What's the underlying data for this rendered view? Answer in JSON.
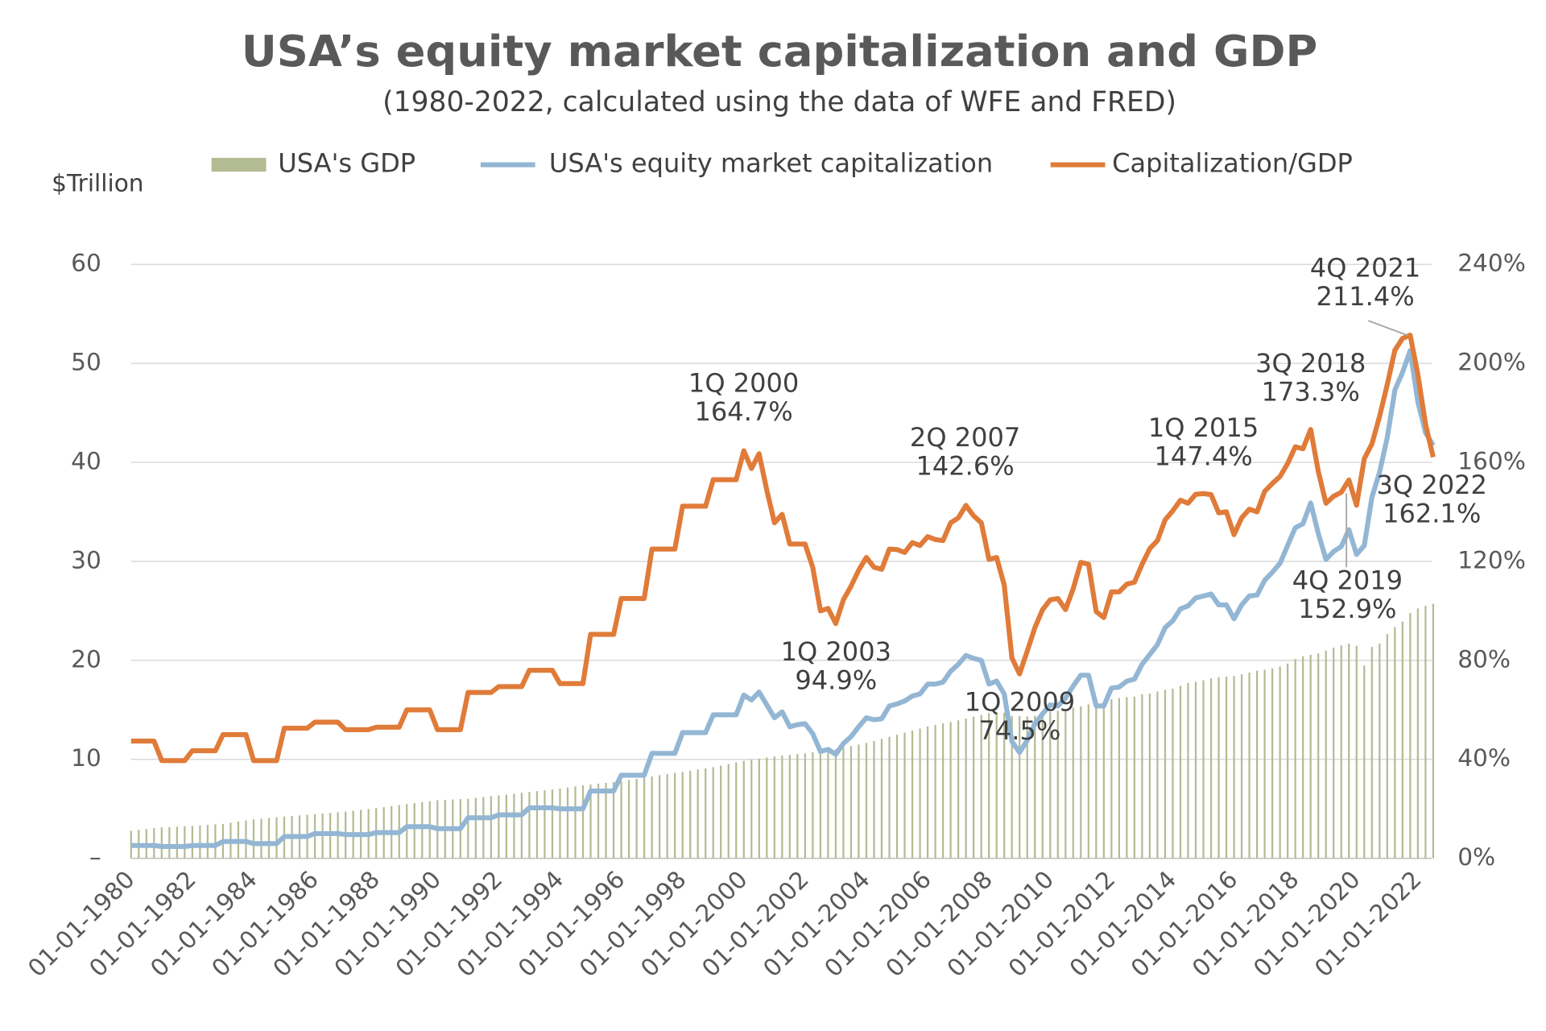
{
  "chart_data": {
    "type": "combo",
    "title": "USA’s equity market capitalization and GDP",
    "subtitle": "(1980-2022, calculated using the data of WFE and FRED)",
    "ylabel": "$Trillion",
    "legend": "top",
    "grid": true,
    "categories": [
      "01-01-1980",
      null,
      null,
      null,
      null,
      null,
      null,
      null,
      "01-01-1982",
      null,
      null,
      null,
      null,
      null,
      null,
      null,
      "01-01-1984",
      null,
      null,
      null,
      null,
      null,
      null,
      null,
      "01-01-1986",
      null,
      null,
      null,
      null,
      null,
      null,
      null,
      "01-01-1988",
      null,
      null,
      null,
      null,
      null,
      null,
      null,
      "01-01-1990",
      null,
      null,
      null,
      null,
      null,
      null,
      null,
      "01-01-1992",
      null,
      null,
      null,
      null,
      null,
      null,
      null,
      "01-01-1994",
      null,
      null,
      null,
      null,
      null,
      null,
      null,
      "01-01-1996",
      null,
      null,
      null,
      null,
      null,
      null,
      null,
      "01-01-1998",
      null,
      null,
      null,
      null,
      null,
      null,
      null,
      "01-01-2000",
      null,
      null,
      null,
      null,
      null,
      null,
      null,
      "01-01-2002",
      null,
      null,
      null,
      null,
      null,
      null,
      null,
      "01-01-2004",
      null,
      null,
      null,
      null,
      null,
      null,
      null,
      "01-01-2006",
      null,
      null,
      null,
      null,
      null,
      null,
      null,
      "01-01-2008",
      null,
      null,
      null,
      null,
      null,
      null,
      null,
      "01-01-2010",
      null,
      null,
      null,
      null,
      null,
      null,
      null,
      "01-01-2012",
      null,
      null,
      null,
      null,
      null,
      null,
      null,
      "01-01-2014",
      null,
      null,
      null,
      null,
      null,
      null,
      null,
      "01-01-2016",
      null,
      null,
      null,
      null,
      null,
      null,
      null,
      "01-01-2018",
      null,
      null,
      null,
      null,
      null,
      null,
      null,
      "01-01-2020",
      null,
      null,
      null,
      null,
      null,
      null,
      null,
      "01-01-2022",
      null,
      null
    ],
    "series": [
      {
        "name": "USA's GDP",
        "type": "bar",
        "axis": "y",
        "color": "#b3bb93",
        "values": [
          2.79,
          2.88,
          2.96,
          3.05,
          3.13,
          3.17,
          3.2,
          3.24,
          3.27,
          3.32,
          3.38,
          3.43,
          3.48,
          3.6,
          3.71,
          3.83,
          3.94,
          4.01,
          4.08,
          4.15,
          4.22,
          4.28,
          4.34,
          4.4,
          4.46,
          4.53,
          4.59,
          4.66,
          4.72,
          4.81,
          4.9,
          4.98,
          5.07,
          5.17,
          5.28,
          5.38,
          5.48,
          5.58,
          5.68,
          5.77,
          5.87,
          5.91,
          5.95,
          5.98,
          6.02,
          6.11,
          6.19,
          6.28,
          6.36,
          6.45,
          6.53,
          6.62,
          6.7,
          6.79,
          6.88,
          6.96,
          7.05,
          7.16,
          7.26,
          7.37,
          7.47,
          7.55,
          7.63,
          7.7,
          7.78,
          7.91,
          8.03,
          8.16,
          8.28,
          8.4,
          8.51,
          8.63,
          8.74,
          8.86,
          8.98,
          9.09,
          9.21,
          9.37,
          9.53,
          9.69,
          9.85,
          9.96,
          10.07,
          10.19,
          10.3,
          10.38,
          10.45,
          10.53,
          10.6,
          10.71,
          10.82,
          10.92,
          11.03,
          11.19,
          11.34,
          11.5,
          11.65,
          11.86,
          12.07,
          12.28,
          12.49,
          12.7,
          12.9,
          13.11,
          13.31,
          13.47,
          13.63,
          13.78,
          13.94,
          14.12,
          14.31,
          14.49,
          14.67,
          14.77,
          14.71,
          14.4,
          14.38,
          14.34,
          14.4,
          14.56,
          14.77,
          14.91,
          15.04,
          15.23,
          15.35,
          15.56,
          15.65,
          15.84,
          16.08,
          16.19,
          16.28,
          16.33,
          16.57,
          16.64,
          16.85,
          17.03,
          17.14,
          17.43,
          17.72,
          17.84,
          17.99,
          18.19,
          18.31,
          18.35,
          18.42,
          18.59,
          18.77,
          18.96,
          19.05,
          19.19,
          19.38,
          19.68,
          20.14,
          20.41,
          20.56,
          20.69,
          21.0,
          21.29,
          21.51,
          21.69,
          21.48,
          19.48,
          21.35,
          21.7,
          22.66,
          23.37,
          23.92,
          24.78,
          25.25,
          25.5,
          25.72
        ]
      },
      {
        "name": "USA's equity market capitalization",
        "type": "line",
        "axis": "y",
        "color": "#93b6d4",
        "values": [
          1.3,
          1.3,
          1.3,
          1.3,
          1.2,
          1.2,
          1.2,
          1.2,
          1.3,
          1.3,
          1.3,
          1.3,
          1.7,
          1.7,
          1.7,
          1.7,
          1.5,
          1.5,
          1.5,
          1.5,
          2.2,
          2.2,
          2.2,
          2.2,
          2.5,
          2.5,
          2.5,
          2.5,
          2.4,
          2.4,
          2.4,
          2.4,
          2.6,
          2.6,
          2.6,
          2.6,
          3.2,
          3.2,
          3.2,
          3.2,
          3.0,
          3.0,
          3.0,
          3.0,
          4.1,
          4.1,
          4.1,
          4.1,
          4.4,
          4.4,
          4.4,
          4.4,
          5.1,
          5.1,
          5.1,
          5.1,
          5.0,
          5.0,
          5.0,
          5.0,
          6.8,
          6.8,
          6.8,
          6.8,
          8.4,
          8.4,
          8.4,
          8.4,
          10.6,
          10.6,
          10.6,
          10.6,
          12.7,
          12.7,
          12.7,
          12.7,
          14.5,
          14.5,
          14.5,
          14.5,
          16.5,
          16.0,
          16.8,
          15.5,
          14.2,
          14.8,
          13.3,
          13.5,
          13.6,
          12.6,
          10.8,
          11.0,
          10.5,
          11.6,
          12.3,
          13.3,
          14.2,
          14.0,
          14.1,
          15.4,
          15.6,
          15.9,
          16.4,
          16.6,
          17.6,
          17.6,
          17.8,
          18.9,
          19.6,
          20.5,
          20.2,
          20.0,
          17.6,
          17.9,
          16.6,
          11.8,
          10.7,
          11.9,
          13.6,
          14.6,
          15.5,
          15.4,
          16.2,
          17.4,
          18.5,
          18.5,
          15.4,
          15.4,
          17.2,
          17.3,
          17.9,
          18.1,
          19.6,
          20.6,
          21.6,
          23.3,
          24.0,
          25.2,
          25.5,
          26.3,
          26.5,
          26.7,
          25.6,
          25.6,
          24.2,
          25.6,
          26.5,
          26.6,
          28.1,
          28.9,
          29.8,
          31.6,
          33.4,
          33.8,
          35.9,
          32.8,
          30.2,
          31.0,
          31.5,
          33.2,
          30.7,
          31.6,
          36.5,
          39.0,
          42.5,
          47.3,
          49.1,
          51.3,
          46.1,
          43.0,
          41.7
        ]
      },
      {
        "name": "Capitalization/GDP",
        "type": "line",
        "axis": "y2",
        "color": "#e07b39",
        "values": [
          47.4,
          47.4,
          47.4,
          47.4,
          39.5,
          39.5,
          39.5,
          39.5,
          43.5,
          43.5,
          43.5,
          43.5,
          50,
          50,
          50,
          50,
          39.5,
          39.5,
          39.5,
          39.5,
          52.6,
          52.6,
          52.6,
          52.6,
          55,
          55,
          55,
          55,
          52,
          52,
          52,
          52,
          53,
          53,
          53,
          53,
          60,
          60,
          60,
          60,
          52,
          52,
          52,
          52,
          67,
          67,
          67,
          67,
          69.4,
          69.4,
          69.4,
          69.4,
          76,
          76,
          76,
          76,
          70.6,
          70.6,
          70.6,
          70.6,
          90.5,
          90.5,
          90.5,
          90.5,
          105,
          105,
          105,
          105,
          125,
          125,
          125,
          125,
          142.3,
          142.3,
          142.3,
          142.3,
          153,
          153,
          153,
          153,
          164.7,
          157.5,
          163.5,
          148.7,
          135.6,
          139,
          127,
          127,
          127,
          117.6,
          100,
          101,
          94.9,
          104.5,
          110,
          116.4,
          121.6,
          117.6,
          116.8,
          125,
          124.8,
          123.6,
          127.6,
          126.4,
          130,
          128.8,
          128.4,
          135.6,
          137.6,
          142.6,
          138.4,
          135.6,
          120.8,
          121.6,
          110.4,
          81,
          74.5,
          83.7,
          93.3,
          100.5,
          104.5,
          105,
          100.5,
          108.9,
          119.6,
          118.8,
          99.7,
          97.3,
          107.7,
          107.7,
          110.8,
          111.6,
          118.8,
          125.2,
          128.4,
          136.8,
          140.4,
          144.7,
          143.5,
          147.1,
          147.4,
          147,
          139.6,
          140,
          130.8,
          137.6,
          141.1,
          140,
          148.3,
          151.5,
          154.3,
          159.5,
          166.3,
          165.5,
          173.3,
          156.3,
          143.5,
          146.3,
          147.9,
          152.9,
          142.7,
          161.5,
          167.5,
          178.6,
          191.4,
          205.3,
          210.1,
          211.4,
          195.4,
          175.4,
          162.1
        ]
      }
    ],
    "ylim": [
      0,
      60
    ],
    "yticks": [
      {
        "value": 0,
        "label": "–"
      },
      10,
      20,
      30,
      40,
      50,
      60
    ],
    "y2lim": [
      0,
      240
    ],
    "y2ticks": [
      {
        "value": 0,
        "label": "0%"
      },
      {
        "value": 40,
        "label": "40%"
      },
      {
        "value": 80,
        "label": "80%"
      },
      {
        "value": 120,
        "label": "120%"
      },
      {
        "value": 160,
        "label": "160%"
      },
      {
        "value": 200,
        "label": "200%"
      },
      {
        "value": 240,
        "label": "240%"
      }
    ],
    "annotations": [
      [
        "4Q 2021",
        "211.4%"
      ],
      [
        "1Q 2000",
        "164.7%"
      ],
      [
        "2Q 2007",
        "142.6%"
      ],
      [
        "1Q 2015",
        "147.4%"
      ],
      [
        "3Q 2018",
        "173.3%"
      ],
      [
        "3Q 2022",
        "162.1%"
      ],
      [
        "4Q 2019",
        "152.9%"
      ],
      [
        "1Q 2003",
        "94.9%"
      ],
      [
        "1Q 2009",
        "74.5%"
      ]
    ]
  }
}
